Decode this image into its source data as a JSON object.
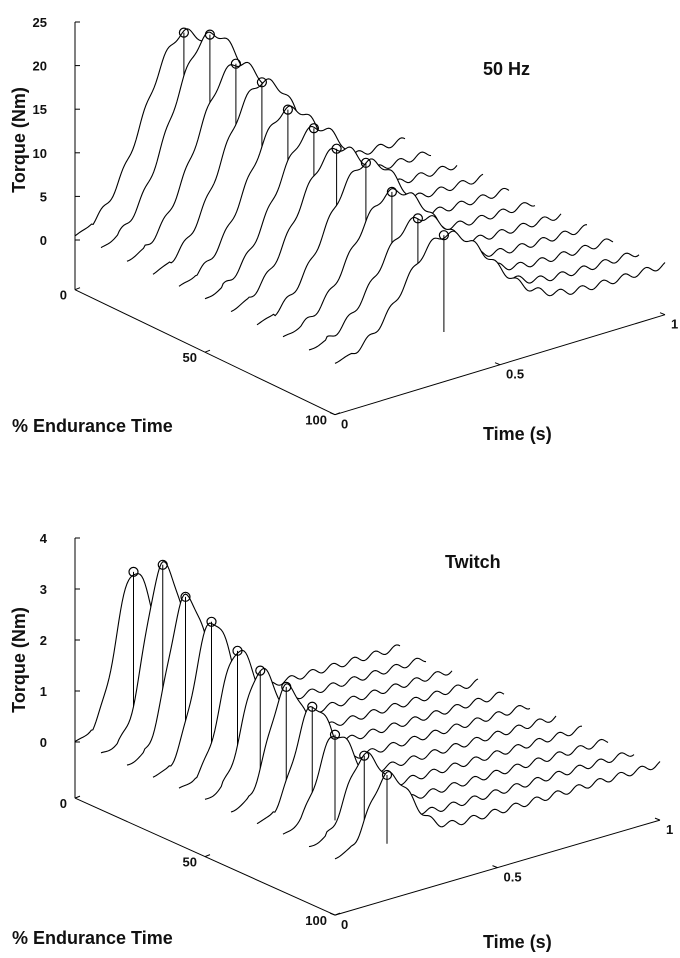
{
  "chart_data": [
    {
      "type": "waterfall",
      "annotation": "50 Hz",
      "ylabel": "Torque (Nm)",
      "xlabel": "Time (s)",
      "zlabel": "% Endurance Time",
      "ylim": [
        -5.7,
        25
      ],
      "yticks": [
        0,
        5,
        10,
        15,
        20,
        25
      ],
      "xlim": [
        0,
        1
      ],
      "xticks": [
        0,
        0.5,
        1
      ],
      "zlim": [
        0,
        100
      ],
      "zticks": [
        0,
        50,
        100
      ],
      "z": [
        0,
        10,
        20,
        30,
        40,
        50,
        60,
        70,
        80,
        90,
        100
      ],
      "peak_times": [
        0.33,
        0.33,
        0.33,
        0.33,
        0.33,
        0.33,
        0.32,
        0.33,
        0.33,
        0.33,
        0.33
      ],
      "values": [
        20.0,
        21.2,
        19.3,
        18.6,
        16.9,
        16.2,
        15.4,
        15.1,
        13.2,
        11.6,
        11.1
      ],
      "color": "#000000"
    },
    {
      "type": "waterfall",
      "annotation": "Twitch",
      "ylabel": "Torque (Nm)",
      "xlabel": "Time (s)",
      "zlabel": "% Endurance Time",
      "ylim": [
        -1.1,
        4
      ],
      "yticks": [
        0,
        1,
        2,
        3,
        4
      ],
      "xlim": [
        0,
        1
      ],
      "xticks": [
        0,
        0.5,
        1
      ],
      "zlim": [
        0,
        100
      ],
      "zticks": [
        0,
        50,
        100
      ],
      "z": [
        0,
        10,
        20,
        30,
        40,
        50,
        60,
        70,
        80,
        90,
        100
      ],
      "peak_times": [
        0.18,
        0.19,
        0.18,
        0.18,
        0.18,
        0.17,
        0.17,
        0.17,
        0.16,
        0.17,
        0.16
      ],
      "values": [
        3.0,
        3.35,
        2.97,
        2.71,
        2.37,
        2.23,
        2.14,
        1.98,
        1.68,
        1.48,
        1.35
      ],
      "color": "#000000"
    }
  ]
}
